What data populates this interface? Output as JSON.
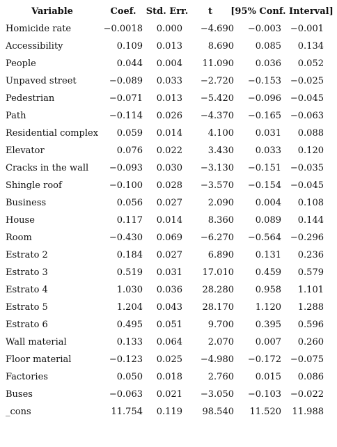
{
  "table": {
    "header": [
      "Variable",
      "Coef.",
      "Std. Err.",
      "t",
      "[95% Conf. Interval]"
    ],
    "rows": [
      [
        "Homicide rate",
        "−0.0018",
        "0.000",
        "−4.690",
        "−0.003",
        "−0.001"
      ],
      [
        "Accessibility",
        "0.109",
        "0.013",
        "8.690",
        "0.085",
        "0.134"
      ],
      [
        "People",
        "0.044",
        "0.004",
        "11.090",
        "0.036",
        "0.052"
      ],
      [
        "Unpaved street",
        "−0.089",
        "0.033",
        "−2.720",
        "−0.153",
        "−0.025"
      ],
      [
        "Pedestrian",
        "−0.071",
        "0.013",
        "−5.420",
        "−0.096",
        "−0.045"
      ],
      [
        "Path",
        "−0.114",
        "0.026",
        "−4.370",
        "−0.165",
        "−0.063"
      ],
      [
        "Residential complex",
        "0.059",
        "0.014",
        "4.100",
        "0.031",
        "0.088"
      ],
      [
        "Elevator",
        "0.076",
        "0.022",
        "3.430",
        "0.033",
        "0.120"
      ],
      [
        "Cracks in the wall",
        "−0.093",
        "0.030",
        "−3.130",
        "−0.151",
        "−0.035"
      ],
      [
        "Shingle roof",
        "−0.100",
        "0.028",
        "−3.570",
        "−0.154",
        "−0.045"
      ],
      [
        "Business",
        "0.056",
        "0.027",
        "2.090",
        "0.004",
        "0.108"
      ],
      [
        "House",
        "0.117",
        "0.014",
        "8.360",
        "0.089",
        "0.144"
      ],
      [
        "Room",
        "−0.430",
        "0.069",
        "−6.270",
        "−0.564",
        "−0.296"
      ],
      [
        "Estrato 2",
        "0.184",
        "0.027",
        "6.890",
        "0.131",
        "0.236"
      ],
      [
        "Estrato 3",
        "0.519",
        "0.031",
        "17.010",
        "0.459",
        "0.579"
      ],
      [
        "Estrato 4",
        "1.030",
        "0.036",
        "28.280",
        "0.958",
        "1.101"
      ],
      [
        "Estrato 5",
        "1.204",
        "0.043",
        "28.170",
        "1.120",
        "1.288"
      ],
      [
        "Estrato 6",
        "0.495",
        "0.051",
        "9.700",
        "0.395",
        "0.596"
      ],
      [
        "Wall material",
        "0.133",
        "0.064",
        "2.070",
        "0.007",
        "0.260"
      ],
      [
        "Floor material",
        "−0.123",
        "0.025",
        "−4.980",
        "−0.172",
        "−0.075"
      ],
      [
        "Factories",
        "0.050",
        "0.018",
        "2.760",
        "0.015",
        "0.086"
      ],
      [
        "Buses",
        "−0.063",
        "0.021",
        "−3.050",
        "−0.103",
        "−0.022"
      ],
      [
        "_cons",
        "11.754",
        "0.119",
        "98.540",
        "11.520",
        "11.988"
      ]
    ]
  }
}
